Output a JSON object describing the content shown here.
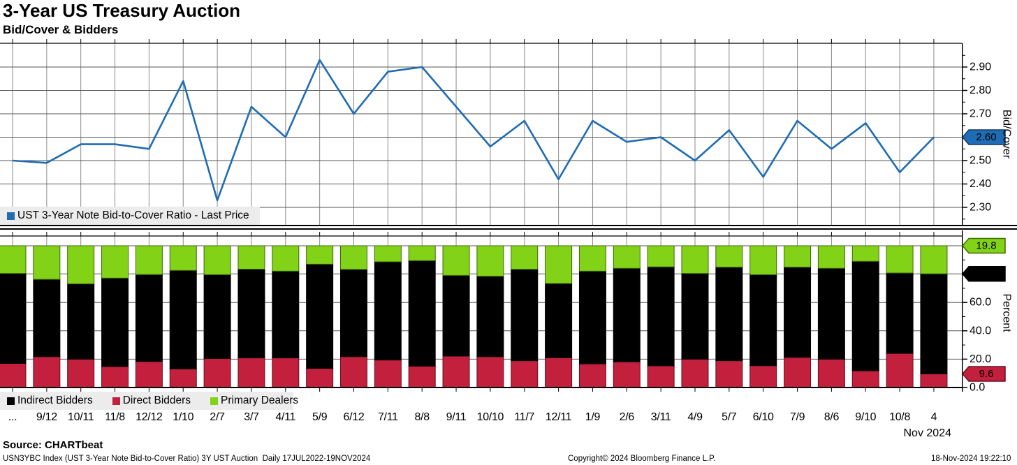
{
  "header": {
    "title": "3-Year US Treasury Auction",
    "subtitle": "Bid/Cover & Bidders"
  },
  "chart_data": [
    {
      "type": "line",
      "panel": "top",
      "title": "UST 3-Year Note Bid-to-Cover Ratio - Last Price",
      "ylabel": "Bid/Cover",
      "yticks": [
        "2.30",
        "2.40",
        "2.50",
        "2.60",
        "2.70",
        "2.80",
        "2.90"
      ],
      "ylim": [
        2.225,
        3.0
      ],
      "grid": true,
      "legend_position": "bottom-left",
      "line_color": "#1e6cb4",
      "badge_border": "#123a66",
      "last_price_badge": "2.60",
      "last_price_value": 2.6,
      "x": [
        "...",
        "9/12",
        "10/11",
        "11/8",
        "12/12",
        "1/10",
        "2/7",
        "3/7",
        "4/11",
        "5/9",
        "6/12",
        "7/11",
        "8/8",
        "9/11",
        "10/10",
        "11/7",
        "12/11",
        "1/9",
        "2/6",
        "3/11",
        "4/9",
        "5/7",
        "6/10",
        "7/9",
        "8/6",
        "9/10",
        "10/8",
        "4"
      ],
      "values": [
        2.5,
        2.49,
        2.57,
        2.57,
        2.55,
        2.84,
        2.33,
        2.73,
        2.6,
        2.93,
        2.7,
        2.88,
        2.9,
        2.73,
        2.56,
        2.67,
        2.42,
        2.67,
        2.58,
        2.6,
        2.5,
        2.63,
        2.43,
        2.67,
        2.55,
        2.66,
        2.45,
        2.6
      ]
    },
    {
      "type": "bar",
      "stacked": true,
      "panel": "bottom",
      "ylabel": "Percent",
      "yticks": [
        "0.0",
        "20.0",
        "40.0",
        "60.0"
      ],
      "gridlevels": [
        20,
        40,
        60,
        80.2,
        100
      ],
      "ylim": [
        0,
        110
      ],
      "x_period_label": "Nov 2024",
      "categories": [
        "...",
        "9/12",
        "10/11",
        "11/8",
        "12/12",
        "1/10",
        "2/7",
        "3/7",
        "4/11",
        "5/9",
        "6/12",
        "7/11",
        "8/8",
        "9/11",
        "10/10",
        "11/7",
        "12/11",
        "1/9",
        "2/6",
        "3/11",
        "4/9",
        "5/7",
        "6/10",
        "7/9",
        "8/6",
        "9/10",
        "10/8",
        "4"
      ],
      "stack_order": [
        "Direct Bidders",
        "Indirect Bidders",
        "Primary Dealers"
      ],
      "series": [
        {
          "name": "Indirect Bidders",
          "color": "#000000",
          "edge": "#000000",
          "badge": "70.6",
          "badge_text": "#ffffff",
          "values": [
            63.5,
            54.5,
            53.1,
            62.4,
            61.3,
            69.5,
            59.1,
            62.6,
            61.2,
            73.5,
            61.5,
            69.3,
            74.4,
            56.9,
            56.7,
            64.5,
            52.4,
            65.4,
            66.0,
            69.8,
            60.5,
            66.0,
            64.2,
            63.6,
            64.1,
            77.2,
            56.7,
            70.6
          ]
        },
        {
          "name": "Direct Bidders",
          "color": "#c2203d",
          "edge": "#6b0f1f",
          "badge": "9.6",
          "badge_text": "#ffffff",
          "values": [
            17.0,
            21.8,
            20.0,
            14.8,
            18.4,
            13.1,
            20.5,
            20.9,
            20.9,
            13.5,
            21.8,
            19.4,
            15.1,
            22.2,
            21.8,
            18.9,
            21.0,
            16.7,
            18.1,
            15.3,
            20.0,
            18.9,
            15.4,
            21.3,
            20.0,
            11.8,
            24.1,
            9.6
          ]
        },
        {
          "name": "Primary Dealers",
          "color": "#82d318",
          "edge": "#3d6b00",
          "badge": "19.8",
          "badge_text": "#000000",
          "values": [
            19.5,
            23.7,
            26.9,
            22.8,
            20.3,
            17.4,
            20.4,
            16.5,
            17.9,
            13.0,
            16.7,
            11.3,
            10.5,
            20.9,
            21.5,
            16.6,
            26.6,
            17.9,
            15.9,
            14.9,
            19.5,
            15.1,
            20.4,
            15.1,
            15.9,
            11.0,
            19.2,
            19.8
          ]
        }
      ]
    }
  ],
  "footer": {
    "source": "Source: CHARTbeat",
    "description": "USN3YBC Index (UST 3-Year Note Bid-to-Cover Ratio) 3Y UST Auction  Daily 17JUL2022-19NOV2024",
    "copyright": "Copyright© 2024 Bloomberg Finance L.P.",
    "timestamp": "18-Nov-2024 19:22:10"
  }
}
